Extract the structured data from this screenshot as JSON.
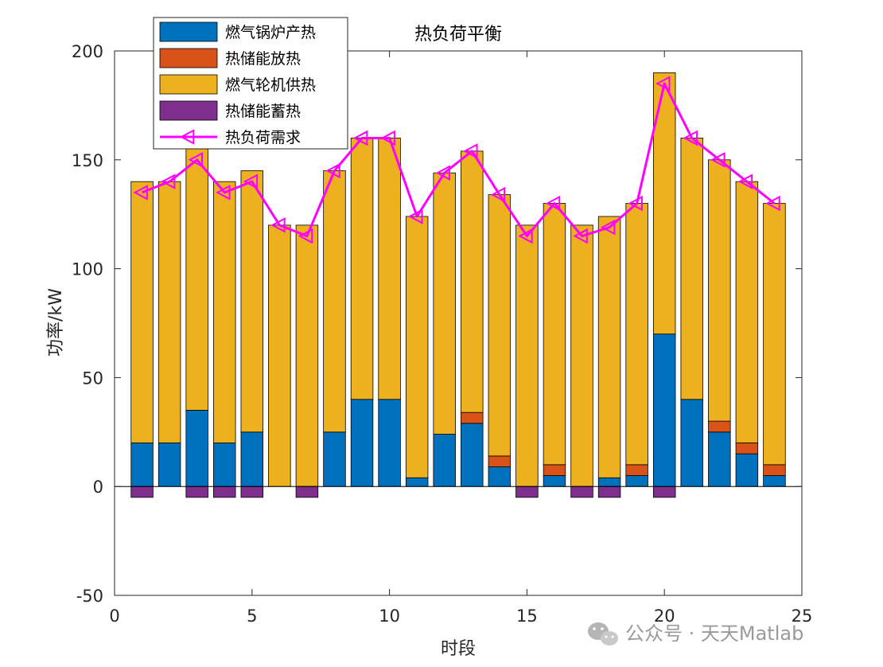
{
  "chart_data": {
    "type": "bar",
    "stacked": true,
    "title": "热负荷平衡",
    "xlabel": "时段",
    "ylabel": "功率/kW",
    "xlim": [
      0,
      25
    ],
    "ylim": [
      -50,
      200
    ],
    "xticks": [
      0,
      5,
      10,
      15,
      20,
      25
    ],
    "yticks": [
      -50,
      0,
      50,
      100,
      150,
      200
    ],
    "x": [
      1,
      2,
      3,
      4,
      5,
      6,
      7,
      8,
      9,
      10,
      11,
      12,
      13,
      14,
      15,
      16,
      17,
      18,
      19,
      20,
      21,
      22,
      23,
      24
    ],
    "series": [
      {
        "name": "燃气锅炉产热",
        "color": "#0072BD",
        "kind": "bar",
        "values": [
          20,
          20,
          35,
          20,
          25,
          0,
          0,
          25,
          40,
          40,
          4,
          24,
          29,
          9,
          0,
          5,
          0,
          4,
          5,
          70,
          40,
          25,
          15,
          5
        ]
      },
      {
        "name": "热储能放热",
        "color": "#D95319",
        "kind": "bar",
        "values": [
          0,
          0,
          0,
          0,
          0,
          0,
          0,
          0,
          0,
          0,
          0,
          0,
          5,
          5,
          0,
          5,
          0,
          0,
          5,
          0,
          0,
          5,
          5,
          5
        ]
      },
      {
        "name": "燃气轮机供热",
        "color": "#EDB120",
        "kind": "bar",
        "values": [
          120,
          120,
          120,
          120,
          120,
          120,
          120,
          120,
          120,
          120,
          120,
          120,
          120,
          120,
          120,
          120,
          120,
          120,
          120,
          120,
          120,
          120,
          120,
          120
        ]
      },
      {
        "name": "热储能蓄热",
        "color": "#7E2F8E",
        "kind": "bar",
        "values": [
          -5,
          0,
          -5,
          -5,
          -5,
          0,
          -5,
          0,
          0,
          0,
          0,
          0,
          0,
          0,
          -5,
          0,
          -5,
          -5,
          0,
          -5,
          0,
          0,
          0,
          0
        ]
      },
      {
        "name": "热负荷需求",
        "color": "#FF00FF",
        "kind": "line",
        "marker": "left-triangle",
        "values": [
          135,
          140,
          150,
          135,
          140,
          120,
          115,
          145,
          160,
          160,
          124,
          144,
          154,
          134,
          115,
          130,
          115,
          119,
          130,
          185,
          160,
          150,
          140,
          130
        ]
      }
    ],
    "legend_position": "top-left",
    "grid": false
  },
  "watermark": {
    "text": "公众号 · 天天Matlab",
    "icon": "wechat-icon"
  }
}
